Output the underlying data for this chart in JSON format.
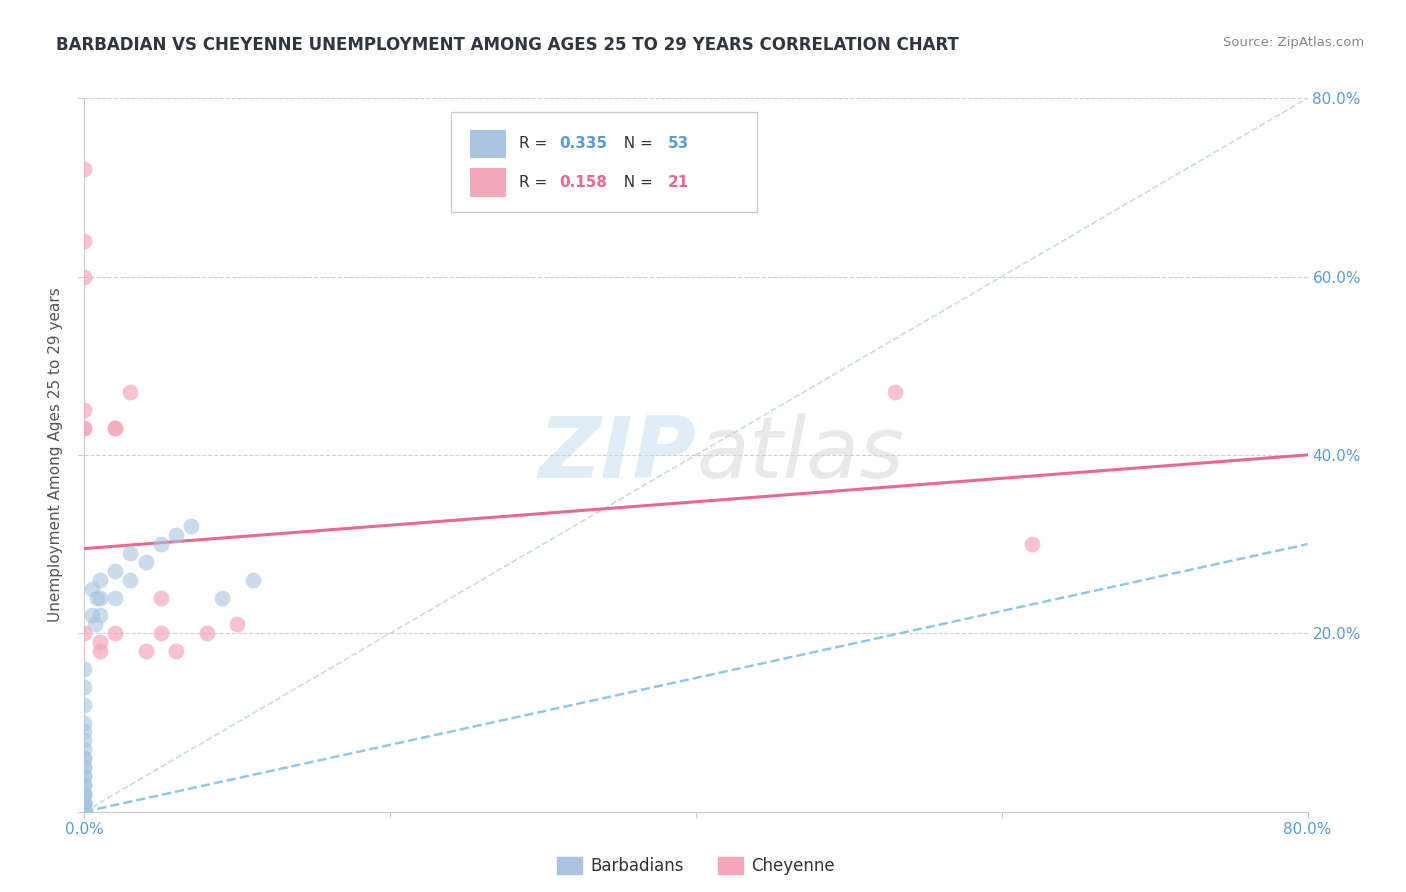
{
  "title": "BARBADIAN VS CHEYENNE UNEMPLOYMENT AMONG AGES 25 TO 29 YEARS CORRELATION CHART",
  "source": "Source: ZipAtlas.com",
  "ylabel": "Unemployment Among Ages 25 to 29 years",
  "xlim": [
    0.0,
    0.8
  ],
  "ylim": [
    0.0,
    0.8
  ],
  "xticks": [
    0.0,
    0.2,
    0.4,
    0.6,
    0.8
  ],
  "yticks": [
    0.0,
    0.2,
    0.4,
    0.6,
    0.8
  ],
  "xticklabels": [
    "0.0%",
    "",
    "",
    "",
    "80.0%"
  ],
  "yticklabels_right": [
    "",
    "20.0%",
    "40.0%",
    "60.0%",
    "80.0%"
  ],
  "barbadian_R": "0.335",
  "barbadian_N": "53",
  "cheyenne_R": "0.158",
  "cheyenne_N": "21",
  "barbadian_color": "#a8c4e0",
  "cheyenne_color": "#f4a7b9",
  "barbadian_line_color": "#7fbfdf",
  "cheyenne_line_color": "#e8698a",
  "diagonal_color": "#c0d8ee",
  "legend_label_barbadian": "Barbadians",
  "legend_label_cheyenne": "Cheyenne",
  "watermark_zip": "ZIP",
  "watermark_atlas": "atlas",
  "barbadian_x": [
    0.0,
    0.0,
    0.0,
    0.0,
    0.0,
    0.0,
    0.0,
    0.0,
    0.0,
    0.0,
    0.0,
    0.0,
    0.0,
    0.0,
    0.0,
    0.0,
    0.0,
    0.0,
    0.0,
    0.0,
    0.0,
    0.0,
    0.0,
    0.0,
    0.0,
    0.0,
    0.0,
    0.0,
    0.0,
    0.0,
    0.0,
    0.0,
    0.0,
    0.0,
    0.0,
    0.0,
    0.005,
    0.005,
    0.007,
    0.008,
    0.01,
    0.01,
    0.01,
    0.02,
    0.02,
    0.03,
    0.03,
    0.04,
    0.05,
    0.06,
    0.07,
    0.09,
    0.11
  ],
  "barbadian_y": [
    0.0,
    0.0,
    0.0,
    0.0,
    0.0,
    0.0,
    0.0,
    0.0,
    0.0,
    0.0,
    0.0,
    0.0,
    0.0,
    0.0,
    0.01,
    0.01,
    0.01,
    0.01,
    0.02,
    0.02,
    0.02,
    0.03,
    0.03,
    0.04,
    0.05,
    0.06,
    0.04,
    0.05,
    0.06,
    0.07,
    0.08,
    0.09,
    0.1,
    0.12,
    0.14,
    0.16,
    0.22,
    0.25,
    0.21,
    0.24,
    0.22,
    0.24,
    0.26,
    0.24,
    0.27,
    0.26,
    0.29,
    0.28,
    0.3,
    0.31,
    0.32,
    0.24,
    0.26
  ],
  "cheyenne_x": [
    0.0,
    0.0,
    0.0,
    0.0,
    0.0,
    0.0,
    0.0,
    0.01,
    0.01,
    0.02,
    0.02,
    0.02,
    0.03,
    0.04,
    0.05,
    0.05,
    0.06,
    0.08,
    0.1,
    0.53,
    0.62
  ],
  "cheyenne_y": [
    0.72,
    0.64,
    0.6,
    0.45,
    0.43,
    0.43,
    0.2,
    0.19,
    0.18,
    0.43,
    0.43,
    0.2,
    0.47,
    0.18,
    0.2,
    0.24,
    0.18,
    0.2,
    0.21,
    0.47,
    0.3
  ],
  "cheyenne_trend_x": [
    0.0,
    0.8
  ],
  "cheyenne_trend_y": [
    0.295,
    0.4
  ],
  "barbadian_trend_x": [
    0.0,
    0.8
  ],
  "barbadian_trend_y": [
    0.0,
    0.3
  ],
  "tick_color": "#5b9bd5",
  "grid_color": "#d0d0d0",
  "title_color": "#2f3640",
  "ylabel_color": "#555555",
  "source_color": "#888888"
}
